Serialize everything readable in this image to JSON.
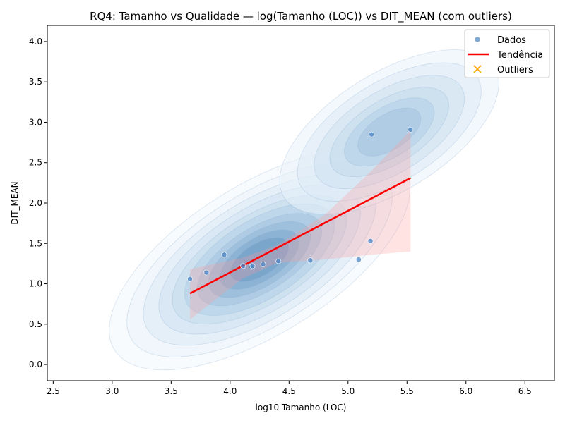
{
  "chart_data": {
    "type": "scatter",
    "title": "RQ4: Tamanho vs Qualidade — log(Tamanho (LOC)) vs DIT_MEAN (com outliers)",
    "xlabel": "log10 Tamanho (LOC)",
    "ylabel": "DIT_MEAN",
    "xlim": [
      2.45,
      6.75
    ],
    "ylim": [
      -0.2,
      4.2
    ],
    "xticks": [
      "2.5",
      "3.0",
      "3.5",
      "4.0",
      "4.5",
      "5.0",
      "5.5",
      "6.0",
      "6.5"
    ],
    "yticks": [
      "0.0",
      "0.5",
      "1.0",
      "1.5",
      "2.0",
      "2.5",
      "3.0",
      "3.5",
      "4.0"
    ],
    "grid": false,
    "legend_position": "top-right",
    "series": [
      {
        "name": "Dados",
        "kind": "scatter",
        "color": "#4a86c5",
        "points": [
          {
            "x": 3.66,
            "y": 1.06
          },
          {
            "x": 3.8,
            "y": 1.14
          },
          {
            "x": 3.95,
            "y": 1.36
          },
          {
            "x": 4.11,
            "y": 1.22
          },
          {
            "x": 4.18,
            "y": 1.21
          },
          {
            "x": 4.19,
            "y": 1.22
          },
          {
            "x": 4.28,
            "y": 1.24
          },
          {
            "x": 4.41,
            "y": 1.28
          },
          {
            "x": 4.68,
            "y": 1.29
          },
          {
            "x": 5.09,
            "y": 1.3
          },
          {
            "x": 5.19,
            "y": 1.53
          },
          {
            "x": 5.2,
            "y": 2.85
          },
          {
            "x": 5.53,
            "y": 2.91
          }
        ]
      },
      {
        "name": "Tendência",
        "kind": "line",
        "color": "#ff0000",
        "points": [
          {
            "x": 3.66,
            "y": 0.88
          },
          {
            "x": 5.53,
            "y": 2.31
          }
        ],
        "confidence_band": {
          "x": [
            3.66,
            4.1,
            4.4,
            4.8,
            5.2,
            5.53
          ],
          "upper": [
            1.18,
            1.32,
            1.48,
            1.85,
            2.4,
            2.9
          ],
          "lower": [
            0.56,
            1.06,
            1.26,
            1.3,
            1.36,
            1.4
          ]
        }
      },
      {
        "name": "Outliers",
        "kind": "scatter",
        "marker": "x",
        "color": "#ffa500",
        "points": []
      }
    ]
  }
}
